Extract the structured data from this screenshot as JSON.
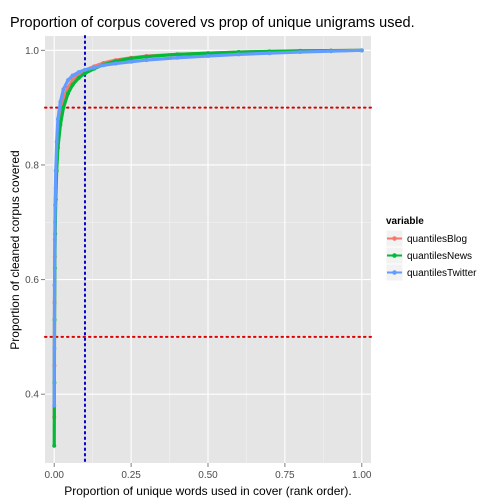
{
  "chart_data": {
    "type": "line",
    "title": "Proportion of corpus covered vs prop of unique unigrams used.",
    "xlabel": "Proportion of unique words used in cover (rank order).",
    "ylabel": "Proportion of cleaned corpus covered",
    "xlim": [
      -0.03,
      1.03
    ],
    "ylim": [
      0.28,
      1.025
    ],
    "x_ticks": [
      0.0,
      0.25,
      0.5,
      0.75,
      1.0
    ],
    "x_tick_labels": [
      "0.00",
      "0.25",
      "0.50",
      "0.75",
      "1.00"
    ],
    "y_ticks": [
      0.4,
      0.6,
      0.8,
      1.0
    ],
    "y_tick_labels": [
      "0.4",
      "0.6",
      "0.8",
      "1.0"
    ],
    "grid": true,
    "legend": {
      "title": "variable",
      "position": "right"
    },
    "reference_lines": [
      {
        "orientation": "horizontal",
        "value": 0.9,
        "color": "#dd0000",
        "style": "dotted"
      },
      {
        "orientation": "horizontal",
        "value": 0.5,
        "color": "#dd0000",
        "style": "dotted"
      },
      {
        "orientation": "vertical",
        "value": 0.1,
        "color": "#0000cc",
        "style": "dotted"
      }
    ],
    "series": [
      {
        "name": "quantilesBlog",
        "color": "#f8766d",
        "points": [
          [
            0.0,
            0.36
          ],
          [
            0.0005,
            0.45
          ],
          [
            0.001,
            0.56
          ],
          [
            0.002,
            0.64
          ],
          [
            0.003,
            0.7
          ],
          [
            0.005,
            0.76
          ],
          [
            0.008,
            0.81
          ],
          [
            0.012,
            0.85
          ],
          [
            0.02,
            0.89
          ],
          [
            0.03,
            0.915
          ],
          [
            0.045,
            0.935
          ],
          [
            0.06,
            0.948
          ],
          [
            0.08,
            0.958
          ],
          [
            0.1,
            0.965
          ],
          [
            0.13,
            0.972
          ],
          [
            0.16,
            0.978
          ],
          [
            0.2,
            0.983
          ],
          [
            0.25,
            0.987
          ],
          [
            0.3,
            0.99
          ],
          [
            0.4,
            0.993
          ],
          [
            0.5,
            0.995
          ],
          [
            0.6,
            0.997
          ],
          [
            0.7,
            0.998
          ],
          [
            0.8,
            0.999
          ],
          [
            0.9,
            0.9995
          ],
          [
            1.0,
            1.0
          ]
        ]
      },
      {
        "name": "quantilesNews",
        "color": "#00ba38",
        "points": [
          [
            0.0,
            0.31
          ],
          [
            0.0005,
            0.42
          ],
          [
            0.001,
            0.53
          ],
          [
            0.002,
            0.62
          ],
          [
            0.003,
            0.68
          ],
          [
            0.005,
            0.74
          ],
          [
            0.008,
            0.79
          ],
          [
            0.012,
            0.83
          ],
          [
            0.02,
            0.87
          ],
          [
            0.03,
            0.9
          ],
          [
            0.045,
            0.925
          ],
          [
            0.06,
            0.94
          ],
          [
            0.08,
            0.952
          ],
          [
            0.1,
            0.96
          ],
          [
            0.13,
            0.968
          ],
          [
            0.16,
            0.975
          ],
          [
            0.2,
            0.981
          ],
          [
            0.25,
            0.986
          ],
          [
            0.3,
            0.989
          ],
          [
            0.4,
            0.993
          ],
          [
            0.5,
            0.995
          ],
          [
            0.6,
            0.997
          ],
          [
            0.7,
            0.998
          ],
          [
            0.8,
            0.999
          ],
          [
            0.9,
            0.9995
          ],
          [
            1.0,
            1.0
          ]
        ]
      },
      {
        "name": "quantilesTwitter",
        "color": "#619cff",
        "points": [
          [
            0.0,
            0.38
          ],
          [
            0.0005,
            0.48
          ],
          [
            0.001,
            0.59
          ],
          [
            0.002,
            0.67
          ],
          [
            0.003,
            0.73
          ],
          [
            0.005,
            0.79
          ],
          [
            0.008,
            0.84
          ],
          [
            0.012,
            0.88
          ],
          [
            0.02,
            0.91
          ],
          [
            0.03,
            0.932
          ],
          [
            0.045,
            0.948
          ],
          [
            0.06,
            0.956
          ],
          [
            0.08,
            0.962
          ],
          [
            0.1,
            0.966
          ],
          [
            0.13,
            0.97
          ],
          [
            0.16,
            0.974
          ],
          [
            0.2,
            0.977
          ],
          [
            0.25,
            0.98
          ],
          [
            0.3,
            0.983
          ],
          [
            0.4,
            0.987
          ],
          [
            0.5,
            0.99
          ],
          [
            0.6,
            0.993
          ],
          [
            0.7,
            0.995
          ],
          [
            0.8,
            0.997
          ],
          [
            0.9,
            0.9985
          ],
          [
            1.0,
            1.0
          ]
        ]
      }
    ]
  }
}
